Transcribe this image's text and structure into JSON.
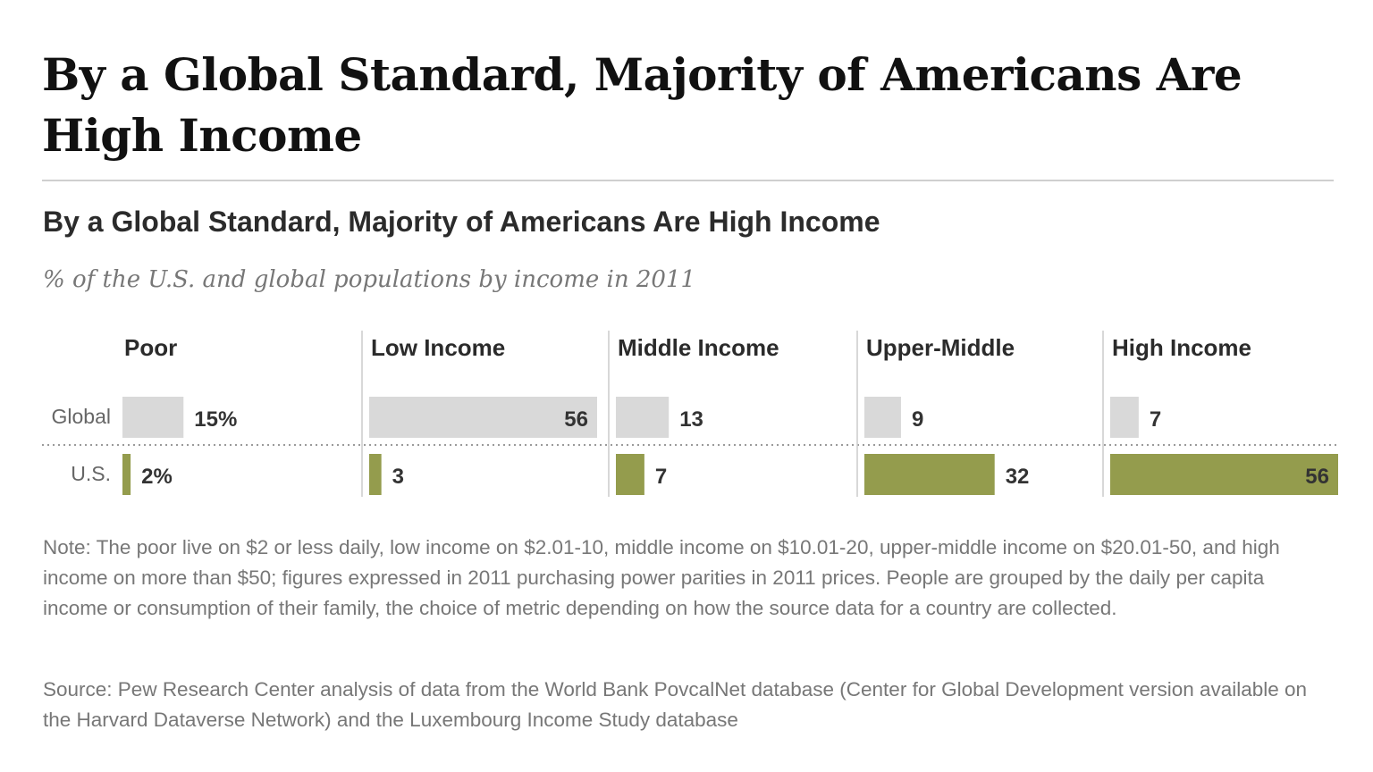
{
  "page_title": "By a Global Standard, Majority of Americans Are High Income",
  "colors": {
    "global_bar": "#d9d9d9",
    "us_bar": "#949c4d",
    "divider": "#cccccc"
  },
  "chart_data": {
    "type": "bar",
    "title": "By a Global Standard, Majority of Americans Are High Income",
    "subtitle": "% of the U.S. and global populations by income in 2011",
    "categories": [
      "Poor",
      "Low Income",
      "Middle Income",
      "Upper-Middle",
      "High Income"
    ],
    "rows": [
      "Global",
      "U.S."
    ],
    "series": [
      {
        "name": "Global",
        "values": [
          15,
          56,
          13,
          9,
          7
        ],
        "labels": [
          "15%",
          "56",
          "13",
          "9",
          "7"
        ]
      },
      {
        "name": "U.S.",
        "values": [
          2,
          3,
          7,
          32,
          56
        ],
        "labels": [
          "2%",
          "3",
          "7",
          "32",
          "56"
        ]
      }
    ],
    "ylim": [
      0,
      56
    ],
    "grid": false,
    "legend": "none"
  },
  "note": "Note: The poor live on $2 or less daily, low income on $2.01-10, middle income on $10.01-20, upper-middle income on $20.01-50, and high income on more than $50; figures expressed in 2011 purchasing power parities in 2011 prices. People are grouped by the daily per capita income or consumption of their family, the choice of metric depending on how the source data for a country are collected.",
  "source": "Source: Pew Research Center analysis of data from the World Bank PovcalNet database (Center for Global Development version available on the Harvard Dataverse Network) and the Luxembourg Income Study database"
}
